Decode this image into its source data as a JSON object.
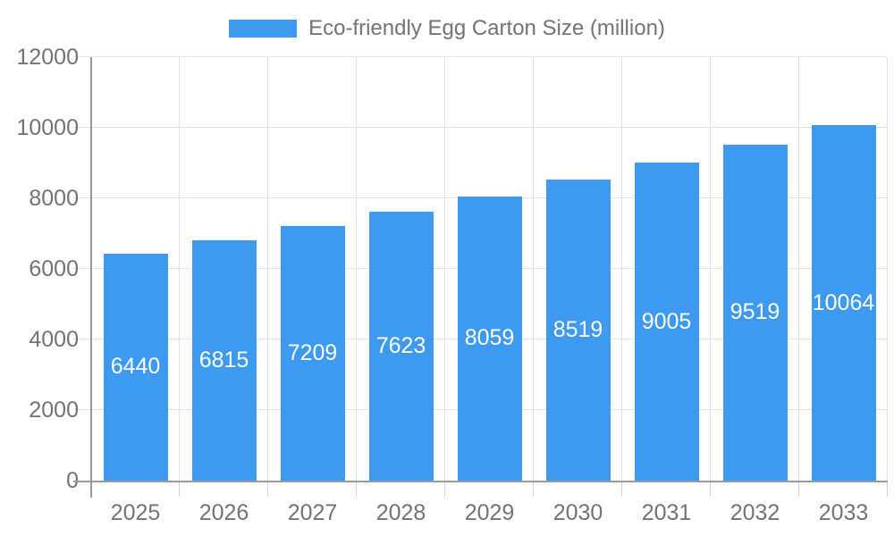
{
  "legend": {
    "label": "Eco-friendly Egg Carton Size (million)"
  },
  "chart_data": {
    "type": "bar",
    "title": "Eco-friendly Egg Carton Size (million)",
    "categories": [
      "2025",
      "2026",
      "2027",
      "2028",
      "2029",
      "2030",
      "2031",
      "2032",
      "2033"
    ],
    "values": [
      6440,
      6815,
      7209,
      7623,
      8059,
      8519,
      9005,
      9519,
      10064
    ],
    "xlabel": "",
    "ylabel": "",
    "ylim": [
      0,
      12000
    ],
    "ytick_step": 2000,
    "ytick_labels": [
      "0",
      "2000",
      "4000",
      "6000",
      "8000",
      "10000",
      "12000"
    ],
    "grid": true,
    "legend_position": "top-center",
    "value_labels": "inside-center",
    "colors": {
      "bar": "#3d9af0",
      "value_text": "#ffffff",
      "axis_text": "#737373",
      "axis_line": "#9a9a9a",
      "grid_line": "#e3e3e3",
      "x_tick": "#d4d4d4"
    }
  }
}
